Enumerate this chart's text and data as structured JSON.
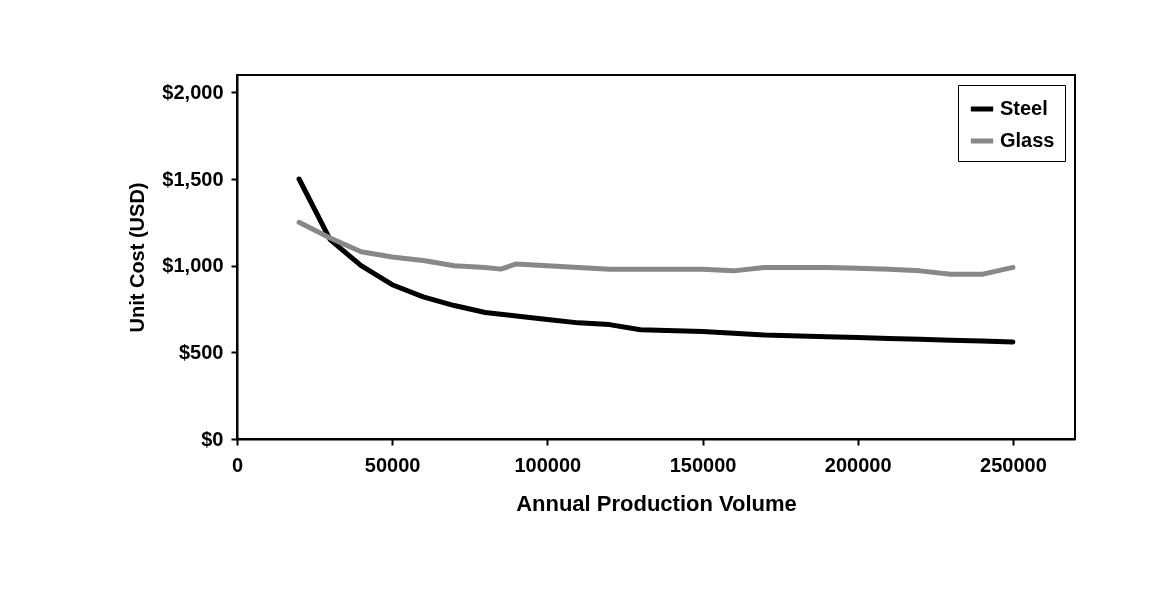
{
  "chart_data": {
    "type": "line",
    "xlabel": "Annual Production Volume",
    "ylabel": "Unit Cost (USD)",
    "x": [
      20000,
      30000,
      40000,
      50000,
      60000,
      70000,
      80000,
      85000,
      90000,
      100000,
      110000,
      120000,
      130000,
      150000,
      160000,
      170000,
      190000,
      200000,
      210000,
      220000,
      230000,
      240000,
      250000
    ],
    "series": [
      {
        "name": "Steel",
        "color": "#000000",
        "values": [
          1500,
          1150,
          1000,
          890,
          820,
          770,
          730,
          720,
          710,
          690,
          670,
          660,
          630,
          620,
          610,
          600,
          590,
          585,
          580,
          575,
          570,
          565,
          560
        ]
      },
      {
        "name": "Glass",
        "color": "#888888",
        "values": [
          1250,
          1160,
          1080,
          1050,
          1030,
          1000,
          990,
          980,
          1010,
          1000,
          990,
          980,
          980,
          980,
          970,
          990,
          990,
          985,
          980,
          970,
          950,
          950,
          990
        ]
      }
    ],
    "xlim": [
      0,
      270000
    ],
    "xticks": [
      0,
      50000,
      100000,
      150000,
      200000,
      250000
    ],
    "ylim": [
      0,
      2100
    ],
    "yticks": [
      {
        "value": 0,
        "label": "$0"
      },
      {
        "value": 500,
        "label": "$500"
      },
      {
        "value": 1000,
        "label": "$1,000"
      },
      {
        "value": 1500,
        "label": "$1,500"
      },
      {
        "value": 2000,
        "label": "$2,000"
      }
    ],
    "grid": false,
    "legend": "top right"
  }
}
